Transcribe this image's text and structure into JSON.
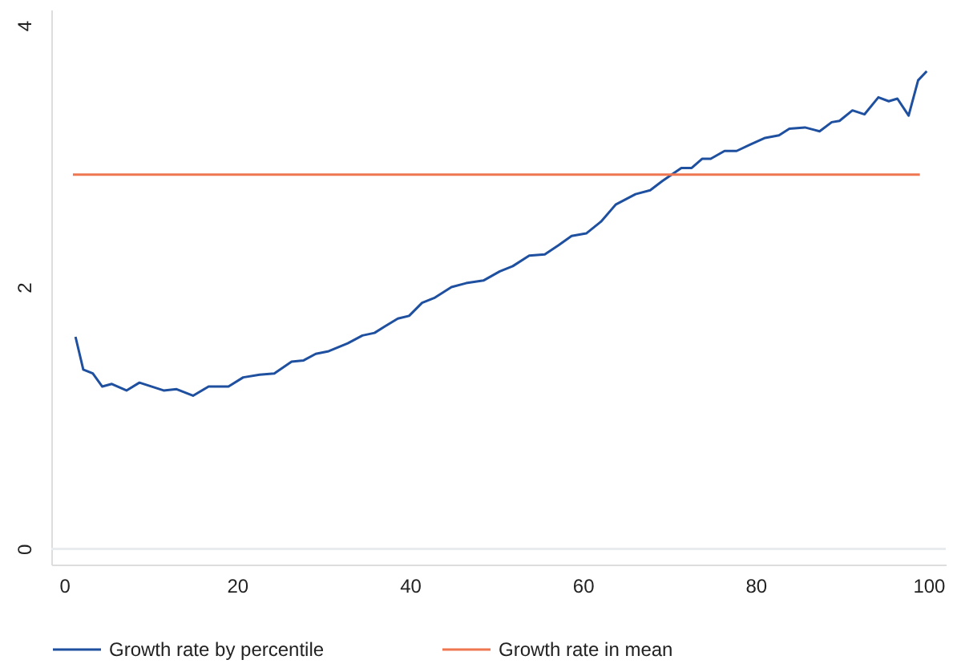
{
  "chart_data": {
    "type": "line",
    "xlim": [
      -1.5,
      102
    ],
    "xticks": [
      0,
      20,
      40,
      60,
      80,
      100
    ],
    "ylim": [
      -0.12,
      4.12
    ],
    "yticks": [
      0,
      2,
      4
    ],
    "grid": false,
    "legend": "bottom",
    "marker": "none",
    "line_style": "solid",
    "ref_lines": [
      {
        "axis": "y",
        "value": 0,
        "color": "#e8ecee"
      }
    ],
    "series": [
      {
        "name": "Growth rate by percentile",
        "color": "#1f50a0",
        "x": [
          1.3,
          2.2,
          3.3,
          4.4,
          5.5,
          7.2,
          8.7,
          11.5,
          13,
          14.9,
          16.7,
          19,
          20.7,
          22.6,
          24.3,
          26.3,
          27.7,
          29.1,
          30.6,
          32.8,
          34.5,
          35.9,
          37.1,
          38.6,
          39.9,
          41.4,
          42.9,
          44.8,
          46.5,
          48.5,
          50.4,
          51.9,
          53.8,
          55.6,
          57.2,
          58.7,
          60.4,
          62.1,
          63.8,
          66.1,
          67.8,
          69.2,
          71.4,
          72.6,
          73.8,
          74.8,
          76.4,
          77.8,
          79.4,
          81.1,
          82.7,
          83.9,
          85.7,
          87.4,
          88.8,
          89.7,
          91.2,
          92.6,
          94.2,
          95.4,
          96.4,
          97.7,
          98.8,
          99.8
        ],
        "values": [
          1.62,
          1.37,
          1.34,
          1.24,
          1.26,
          1.21,
          1.27,
          1.21,
          1.22,
          1.17,
          1.24,
          1.24,
          1.31,
          1.33,
          1.34,
          1.43,
          1.44,
          1.49,
          1.51,
          1.57,
          1.63,
          1.65,
          1.7,
          1.76,
          1.78,
          1.88,
          1.92,
          2.0,
          2.03,
          2.05,
          2.12,
          2.16,
          2.24,
          2.25,
          2.32,
          2.39,
          2.41,
          2.5,
          2.63,
          2.71,
          2.74,
          2.81,
          2.91,
          2.91,
          2.98,
          2.98,
          3.04,
          3.04,
          3.09,
          3.14,
          3.16,
          3.21,
          3.22,
          3.19,
          3.26,
          3.27,
          3.35,
          3.32,
          3.45,
          3.42,
          3.44,
          3.31,
          3.58,
          3.65
        ]
      },
      {
        "name": "Growth rate in mean",
        "color": "#ee7650",
        "x": [
          1,
          99
        ],
        "values": [
          2.86,
          2.86
        ]
      }
    ]
  }
}
